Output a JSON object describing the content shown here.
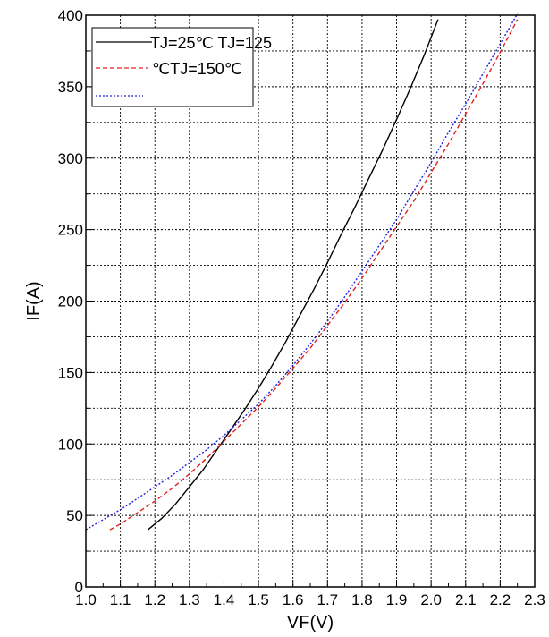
{
  "chart_data": {
    "type": "line",
    "xlabel": "VF(V)",
    "ylabel": "IF(A)",
    "xlim": [
      1.0,
      2.3
    ],
    "ylim": [
      0,
      400
    ],
    "x_ticks": [
      "1.0",
      "1.1",
      "1.2",
      "1.3",
      "1.4",
      "1.5",
      "1.6",
      "1.7",
      "1.8",
      "1.9",
      "2.0",
      "2.1",
      "2.2",
      "2.3"
    ],
    "y_ticks": [
      "0",
      "50",
      "100",
      "150",
      "200",
      "250",
      "300",
      "350",
      "400"
    ],
    "x_tick_values": [
      1.0,
      1.1,
      1.2,
      1.3,
      1.4,
      1.5,
      1.6,
      1.7,
      1.8,
      1.9,
      2.0,
      2.1,
      2.2,
      2.3
    ],
    "y_tick_values": [
      0,
      50,
      100,
      150,
      200,
      250,
      300,
      350,
      400
    ],
    "grid": true,
    "legend_position": "top-left",
    "legend_line1": "TJ=25℃ TJ=125",
    "legend_line2": "℃TJ=150℃",
    "series": [
      {
        "style": "solid",
        "color": "#000000",
        "x": [
          1.18,
          1.22,
          1.26,
          1.3,
          1.34,
          1.38,
          1.42,
          1.46,
          1.5,
          1.54,
          1.58,
          1.62,
          1.66,
          1.7,
          1.74,
          1.78,
          1.82,
          1.86,
          1.9,
          1.94,
          1.98,
          2.02
        ],
        "y": [
          40,
          48,
          58,
          70,
          82,
          96,
          110,
          124,
          139,
          155,
          172,
          190,
          208,
          227,
          247,
          266,
          286,
          306,
          327,
          349,
          372,
          397
        ]
      },
      {
        "style": "dashed",
        "color": "#e0201c",
        "x": [
          1.07,
          1.1,
          1.15,
          1.2,
          1.25,
          1.3,
          1.35,
          1.4,
          1.45,
          1.5,
          1.55,
          1.6,
          1.65,
          1.7,
          1.75,
          1.8,
          1.85,
          1.9,
          1.95,
          2.0,
          2.05,
          2.1,
          2.15,
          2.2,
          2.25
        ],
        "y": [
          40,
          44,
          52,
          60,
          69,
          79,
          90,
          102,
          114,
          126,
          139,
          153,
          167,
          183,
          199,
          216,
          234,
          252,
          270,
          290,
          310,
          331,
          352,
          374,
          397
        ]
      },
      {
        "style": "dotted",
        "color": "#2020e0",
        "x": [
          1.0,
          1.05,
          1.1,
          1.15,
          1.2,
          1.25,
          1.3,
          1.35,
          1.4,
          1.45,
          1.5,
          1.55,
          1.6,
          1.65,
          1.7,
          1.75,
          1.8,
          1.85,
          1.9,
          1.95,
          2.0,
          2.05,
          2.1,
          2.15,
          2.2,
          2.25
        ],
        "y": [
          40,
          47,
          54,
          62,
          70,
          78,
          87,
          96,
          106,
          117,
          128,
          141,
          155,
          170,
          186,
          203,
          221,
          239,
          257,
          277,
          297,
          318,
          338,
          359,
          380,
          401
        ]
      }
    ]
  }
}
